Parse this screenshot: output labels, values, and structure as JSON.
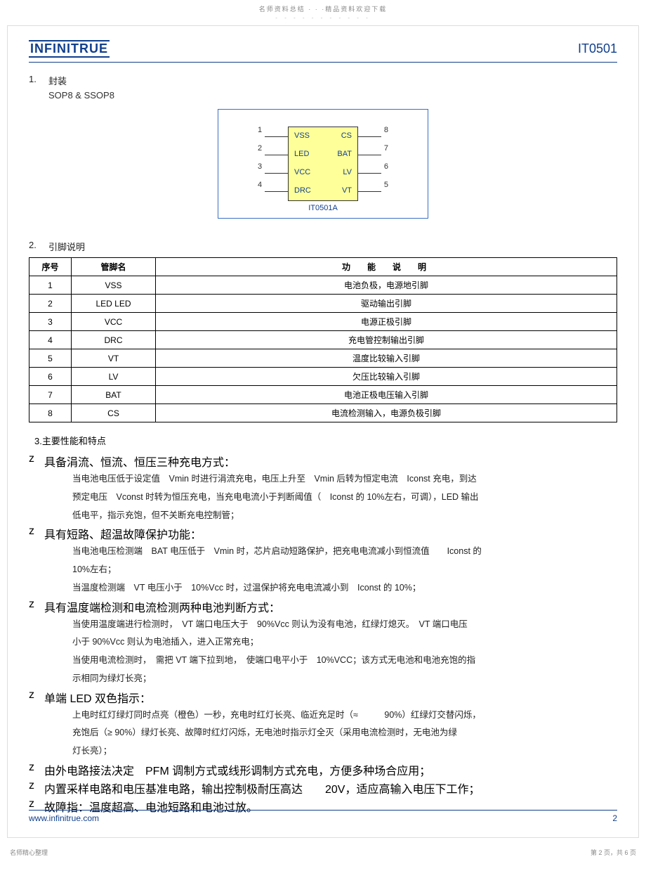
{
  "top_header": "名师资料总结 · · ·精品资料欢迎下载",
  "logo_text": "INFINITRUE",
  "part_number": "IT0501",
  "sections": {
    "s1": {
      "num": "1.",
      "title": "封装",
      "sub": "SOP8 & SSOP8"
    },
    "s2": {
      "num": "2.",
      "title": "引脚说明"
    },
    "s3": {
      "title": "3.主要性能和特点"
    }
  },
  "chip": {
    "name": "IT0501A",
    "rows": [
      {
        "ln": "1",
        "ll": "VSS",
        "rl": "CS",
        "rn": "8"
      },
      {
        "ln": "2",
        "ll": "LED",
        "rl": "BAT",
        "rn": "7"
      },
      {
        "ln": "3",
        "ll": "VCC",
        "rl": "LV",
        "rn": "6"
      },
      {
        "ln": "4",
        "ll": "DRC",
        "rl": "VT",
        "rn": "5"
      }
    ]
  },
  "pin_table": {
    "headers": {
      "seq": "序号",
      "name": "管脚名",
      "desc": "功　能　说　明"
    },
    "rows": [
      {
        "seq": "1",
        "name": "VSS",
        "desc": "电池负极，电源地引脚"
      },
      {
        "seq": "2",
        "name": "LED LED",
        "desc": "驱动输出引脚"
      },
      {
        "seq": "3",
        "name": "VCC",
        "desc": "电源正极引脚"
      },
      {
        "seq": "4",
        "name": "DRC",
        "desc": "充电管控制输出引脚"
      },
      {
        "seq": "5",
        "name": "VT",
        "desc": "温度比较输入引脚"
      },
      {
        "seq": "6",
        "name": "LV",
        "desc": "欠压比较输入引脚"
      },
      {
        "seq": "7",
        "name": "BAT",
        "desc": "电池正极电压输入引脚"
      },
      {
        "seq": "8",
        "name": "CS",
        "desc": "电流检测输入，电源负极引脚"
      }
    ]
  },
  "features": [
    {
      "head": "具备涓流、恒流、恒压三种充电方式：",
      "lines": [
        "当电池电压低于设定值　Vmin 时进行涓流充电，电压上升至　Vmin 后转为恒定电流　Iconst 充电，到达",
        "预定电压　Vconst 时转为恒压充电，当充电电流小于判断阈值（　Iconst 的 10%左右，可调），LED 输出",
        "低电平，指示充饱，但不关断充电控制管；"
      ]
    },
    {
      "head": "具有短路、超温故障保护功能：",
      "lines": [
        "当电池电压检测端　BAT 电压低于　Vmin 时，芯片启动短路保护，把充电电流减小到恒流值　　Iconst 的",
        "10%左右；",
        "当温度检测端　VT 电压小于　10%Vcc 时，过温保护将充电电流减小到　Iconst 的 10%；"
      ]
    },
    {
      "head": "具有温度端检测和电流检测两种电池判断方式：",
      "lines": [
        "当使用温度端进行检测时，　VT 端口电压大于　90%Vcc 则认为没有电池，红绿灯熄灭。　VT 端口电压",
        "小于 90%Vcc 则认为电池插入，进入正常充电；",
        "当使用电流检测时，　需把 VT 端下拉到地，　使端口电平小于　10%VCC；该方式无电池和电池充饱的指",
        "示相同为绿灯长亮；"
      ]
    },
    {
      "head": "单端 LED 双色指示：",
      "lines": [
        "上电时红灯绿灯同时点亮（橙色）一秒，充电时红灯长亮、临近充足时（≈　　　90%）红绿灯交替闪烁，",
        "充饱后（≥ 90%）绿灯长亮、故障时红灯闪烁，无电池时指示灯全灭（采用电流检测时，无电池为绿",
        "灯长亮）；"
      ]
    },
    {
      "head": "由外电路接法决定　PFM 调制方式或线形调制方式充电，方便多种场合应用；",
      "lines": []
    },
    {
      "head": "内置采样电路和电压基准电路，输出控制极耐压高达　　20V，适应高输入电压下工作；",
      "lines": []
    },
    {
      "head": "故障指：温度超高、电池短路和电池过放。",
      "lines": []
    }
  ],
  "footer": {
    "url": "www.infinitrue.com",
    "page": "2"
  },
  "bottom": {
    "left": "名师精心整理",
    "right": "第 2 页，共 6 页"
  }
}
